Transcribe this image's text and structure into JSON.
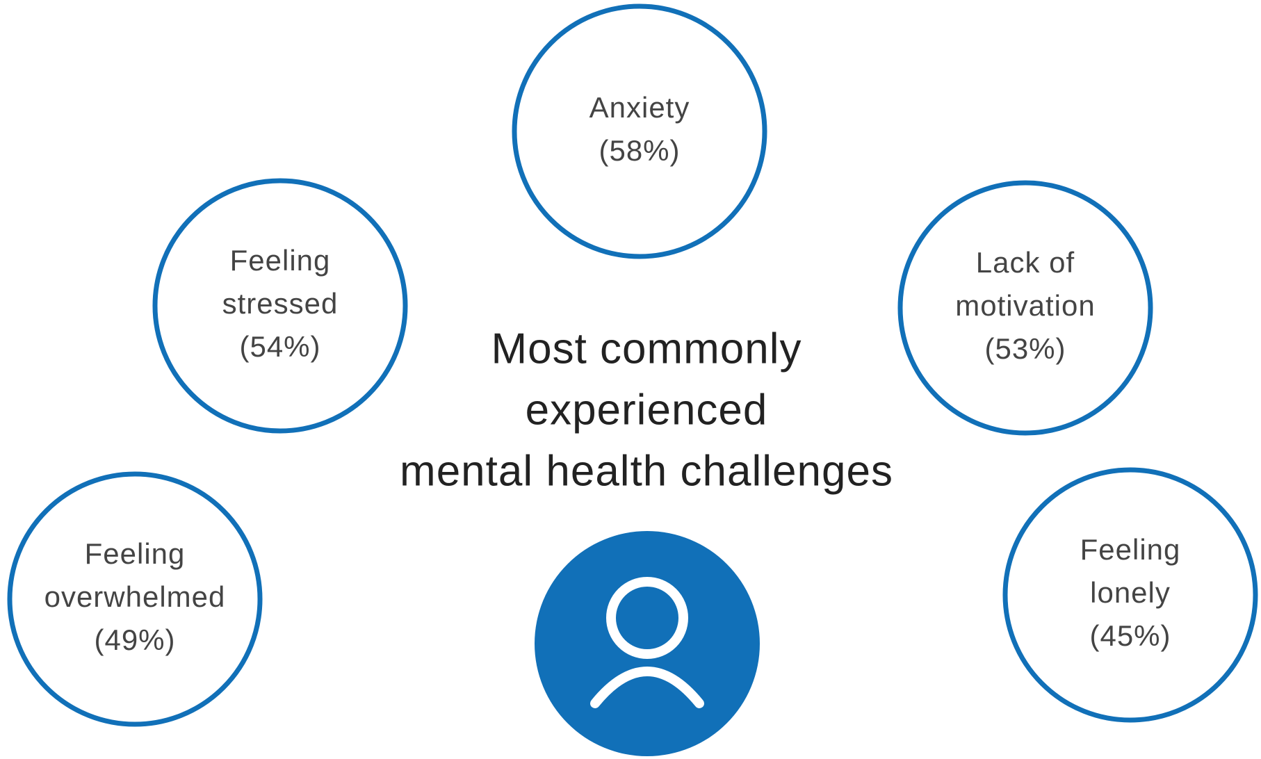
{
  "title": [
    "Most commonly",
    "experienced",
    "mental health challenges"
  ],
  "nodes": [
    {
      "label": [
        "Anxiety"
      ],
      "percent": "(58%)"
    },
    {
      "label": [
        "Feeling",
        "stressed"
      ],
      "percent": "(54%)"
    },
    {
      "label": [
        "Lack of",
        "motivation"
      ],
      "percent": "(53%)"
    },
    {
      "label": [
        "Feeling",
        "overwhelmed"
      ],
      "percent": "(49%)"
    },
    {
      "label": [
        "Feeling",
        "lonely"
      ],
      "percent": "(45%)"
    }
  ]
}
